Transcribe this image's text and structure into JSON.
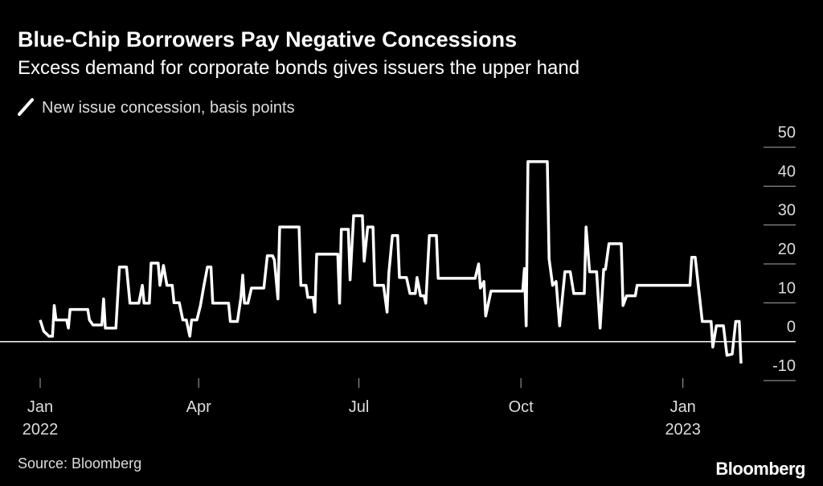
{
  "chart_data": {
    "type": "line",
    "title": "Blue-Chip Borrowers Pay Negative Concessions",
    "subtitle": "Excess demand for corporate bonds gives issuers the upper hand",
    "source": "Source: Bloomberg",
    "logo": "Bloomberg",
    "x": [
      "2022-01-01",
      "2022-01-03",
      "2022-01-06",
      "2022-01-08",
      "2022-01-09",
      "2022-01-10",
      "2022-01-16",
      "2022-01-17",
      "2022-01-18",
      "2022-01-28",
      "2022-01-29",
      "2022-01-31",
      "2022-02-05",
      "2022-02-06",
      "2022-02-07",
      "2022-02-13",
      "2022-02-15",
      "2022-02-19",
      "2022-02-21",
      "2022-02-26",
      "2022-02-28",
      "2022-03-01",
      "2022-03-04",
      "2022-03-05",
      "2022-03-09",
      "2022-03-10",
      "2022-03-12",
      "2022-03-14",
      "2022-03-17",
      "2022-03-18",
      "2022-03-21",
      "2022-03-23",
      "2022-03-25",
      "2022-03-27",
      "2022-03-28",
      "2022-03-31",
      "2022-04-02",
      "2022-04-04",
      "2022-04-06",
      "2022-04-08",
      "2022-04-09",
      "2022-04-18",
      "2022-04-19",
      "2022-04-23",
      "2022-04-25",
      "2022-04-26",
      "2022-04-27",
      "2022-04-29",
      "2022-05-01",
      "2022-05-08",
      "2022-05-10",
      "2022-05-13",
      "2022-05-14",
      "2022-05-16",
      "2022-05-17",
      "2022-05-28",
      "2022-05-29",
      "2022-06-01",
      "2022-06-02",
      "2022-06-05",
      "2022-06-06",
      "2022-06-07",
      "2022-06-19",
      "2022-06-20",
      "2022-06-21",
      "2022-06-25",
      "2022-06-26",
      "2022-06-28",
      "2022-07-03",
      "2022-07-04",
      "2022-07-06",
      "2022-07-09",
      "2022-07-10",
      "2022-07-15",
      "2022-07-17",
      "2022-07-18",
      "2022-07-20",
      "2022-07-23",
      "2022-07-24",
      "2022-07-28",
      "2022-07-30",
      "2022-08-02",
      "2022-08-03",
      "2022-08-05",
      "2022-08-07",
      "2022-08-08",
      "2022-08-10",
      "2022-08-14",
      "2022-08-15",
      "2022-09-05",
      "2022-09-07",
      "2022-09-08",
      "2022-09-10",
      "2022-09-11",
      "2022-09-14",
      "2022-10-02",
      "2022-10-03",
      "2022-10-04",
      "2022-10-05",
      "2022-10-16",
      "2022-10-17",
      "2022-10-19",
      "2022-10-21",
      "2022-10-23",
      "2022-10-26",
      "2022-10-29",
      "2022-10-31",
      "2022-11-06",
      "2022-11-07",
      "2022-11-09",
      "2022-11-13",
      "2022-11-15",
      "2022-11-17",
      "2022-11-18",
      "2022-11-20",
      "2022-11-27",
      "2022-11-28",
      "2022-11-30",
      "2022-12-05",
      "2022-12-06",
      "2023-01-05",
      "2023-01-06",
      "2023-01-08",
      "2023-01-10",
      "2023-01-12",
      "2023-01-17",
      "2023-01-18",
      "2023-01-20",
      "2023-01-24",
      "2023-01-26",
      "2023-01-29",
      "2023-01-31",
      "2023-02-02",
      "2023-02-03"
    ],
    "series": [
      {
        "name": "New issue concession, basis points",
        "color": "#ffffff",
        "values": [
          5.6,
          2.7,
          1.4,
          1.4,
          9.3,
          5.6,
          5.6,
          3.5,
          8.3,
          8.3,
          5.6,
          4.3,
          4.3,
          11,
          3.5,
          3.5,
          19.2,
          19.2,
          9.9,
          9.9,
          14.5,
          9.9,
          9.9,
          20.2,
          20.2,
          14.5,
          19.6,
          14.5,
          14.5,
          10,
          10,
          5.6,
          5.6,
          1.4,
          5.6,
          5.6,
          9.3,
          14.5,
          19.2,
          19.2,
          9.9,
          9.9,
          5.2,
          5.2,
          11.4,
          17.1,
          9.9,
          9.9,
          13.8,
          13.8,
          22.1,
          22.1,
          21,
          11,
          29.5,
          29.5,
          14.5,
          14.5,
          11.4,
          11.4,
          7.6,
          22.5,
          22.5,
          9.9,
          28.9,
          28.9,
          15.9,
          32.4,
          32.4,
          20.7,
          29.5,
          29.5,
          14.5,
          14.5,
          7.6,
          17.6,
          27.3,
          27.3,
          16.5,
          16.5,
          12.4,
          12.4,
          16.5,
          11.8,
          11.8,
          9.9,
          27.3,
          27.3,
          16.3,
          16.3,
          20,
          13.8,
          15.5,
          6.6,
          13,
          13,
          18.8,
          4.1,
          46.3,
          46.3,
          21.3,
          14.5,
          15.5,
          4.1,
          18,
          18,
          12.4,
          12.4,
          29.5,
          18,
          18,
          3.5,
          18.6,
          18.6,
          25.2,
          25.2,
          9.3,
          11.8,
          11.8,
          14.5,
          14.5,
          21.7,
          21.7,
          13.4,
          5.2,
          5.2,
          -1.4,
          4.1,
          4.1,
          -3.5,
          -3.2,
          5.2,
          5.2,
          -5.6
        ]
      }
    ],
    "xlim": [
      "2022-01-01",
      "2023-02-03"
    ],
    "xticks": [
      {
        "value": "2022-01-01",
        "label": "Jan",
        "sublabel": "2022"
      },
      {
        "value": "2022-04-01",
        "label": "Apr"
      },
      {
        "value": "2022-07-01",
        "label": "Jul"
      },
      {
        "value": "2022-10-01",
        "label": "Oct"
      },
      {
        "value": "2023-01-01",
        "label": "Jan",
        "sublabel": "2023"
      }
    ],
    "ylim": [
      -10,
      50
    ],
    "yticks": [
      50,
      40,
      30,
      20,
      10,
      0,
      -10
    ],
    "grid": true
  }
}
